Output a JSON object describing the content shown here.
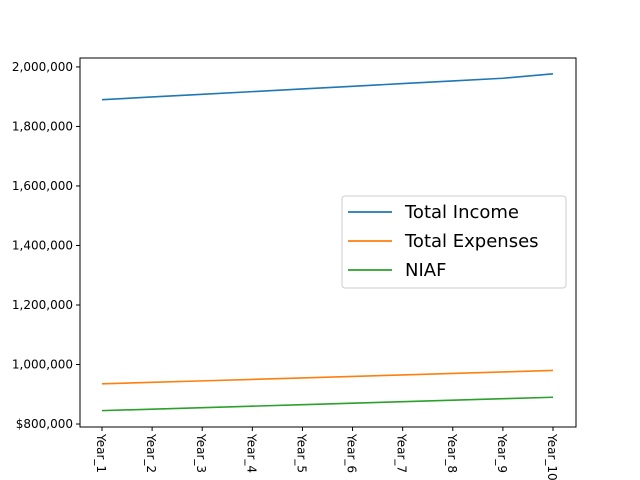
{
  "chart_data": {
    "type": "line",
    "categories": [
      "Year_1",
      "Year_2",
      "Year_3",
      "Year_4",
      "Year_5",
      "Year_6",
      "Year_7",
      "Year_8",
      "Year_9",
      "Year_10"
    ],
    "series": [
      {
        "name": "Total Income",
        "color": "#1f77b4",
        "values": [
          1890000,
          1899000,
          1908000,
          1917000,
          1926000,
          1935000,
          1944000,
          1953000,
          1962000,
          1977000
        ]
      },
      {
        "name": "Total Expenses",
        "color": "#ff7f0e",
        "values": [
          935000,
          940000,
          945000,
          950000,
          955000,
          960000,
          965000,
          970000,
          975000,
          980000
        ]
      },
      {
        "name": "NIAF",
        "color": "#2ca02c",
        "values": [
          845000,
          850000,
          855000,
          860000,
          865000,
          870000,
          875000,
          880000,
          885000,
          890000
        ]
      }
    ],
    "yticks": [
      800000,
      1000000,
      1200000,
      1400000,
      1600000,
      1800000,
      2000000
    ],
    "ytick_labels": [
      "$800,000",
      "1,000,000",
      "1,200,000",
      "1,400,000",
      "1,600,000",
      "1,800,000",
      "2,000,000"
    ],
    "ylim": [
      790000,
      2030000
    ],
    "xlabel": "",
    "ylabel": "",
    "title": "",
    "legend_position": "center-right",
    "grid": false
  }
}
